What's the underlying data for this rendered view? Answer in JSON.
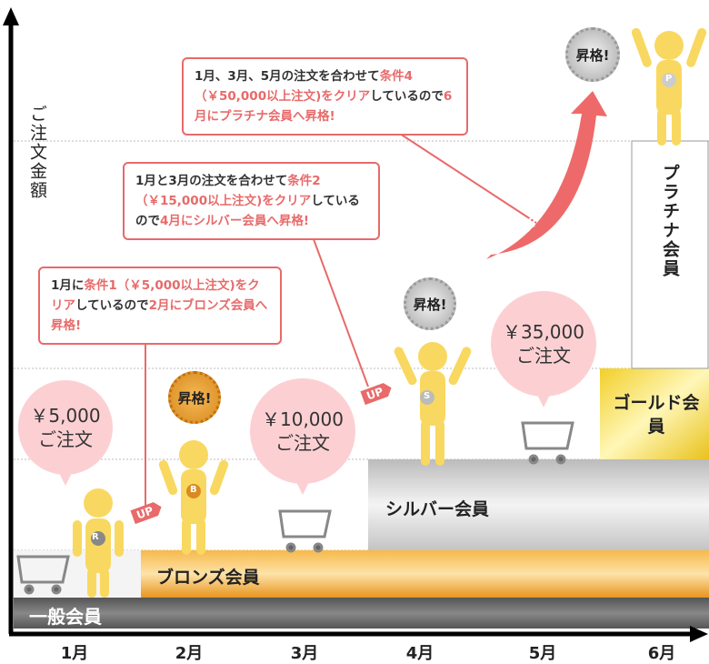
{
  "axis": {
    "y_label": "ご注文金額",
    "months": [
      "1月",
      "2月",
      "3月",
      "4月",
      "5月",
      "6月"
    ]
  },
  "tiers": {
    "general": "一般会員",
    "bronze": "ブロンズ会員",
    "silver": "シルバー会員",
    "gold": "ゴールド会員",
    "platinum": "プラチナ会員"
  },
  "bubbles": [
    {
      "amount": "￥5,000",
      "text": "ご注文"
    },
    {
      "amount": "￥10,000",
      "text": "ご注文"
    },
    {
      "amount": "￥35,000",
      "text": "ご注文"
    }
  ],
  "badge": "昇格!",
  "up": "UP",
  "medals": [
    "R",
    "B",
    "S",
    "P"
  ],
  "callouts": [
    {
      "parts": [
        {
          "t": "1月に",
          "h": false
        },
        {
          "t": "条件1（￥5,000以上注文)をクリア",
          "h": true
        },
        {
          "t": "しているので",
          "h": false
        },
        {
          "t": "2月にブロンズ会員へ昇格!",
          "h": true
        }
      ]
    },
    {
      "parts": [
        {
          "t": "1月と3月の注文を合わせて",
          "h": false
        },
        {
          "t": "条件2（￥15,000以上注文)をクリア",
          "h": true
        },
        {
          "t": "しているので",
          "h": false
        },
        {
          "t": "4月にシルバー会員へ昇格!",
          "h": true
        }
      ]
    },
    {
      "parts": [
        {
          "t": "1月、3月、5月の注文を合わせて",
          "h": false
        },
        {
          "t": "条件4（￥50,000以上注文)をクリア",
          "h": true
        },
        {
          "t": "しているので",
          "h": false
        },
        {
          "t": "6月にプラチナ会員へ昇格!",
          "h": true
        }
      ]
    }
  ],
  "colors": {
    "accent": "#e86a6a",
    "bubble": "#fcd0d3",
    "bronze": "#f0a030",
    "silver": "#d0d0d0",
    "gold": "#f0d030",
    "general": "#6a6a6a",
    "figure": "#f8d860"
  }
}
